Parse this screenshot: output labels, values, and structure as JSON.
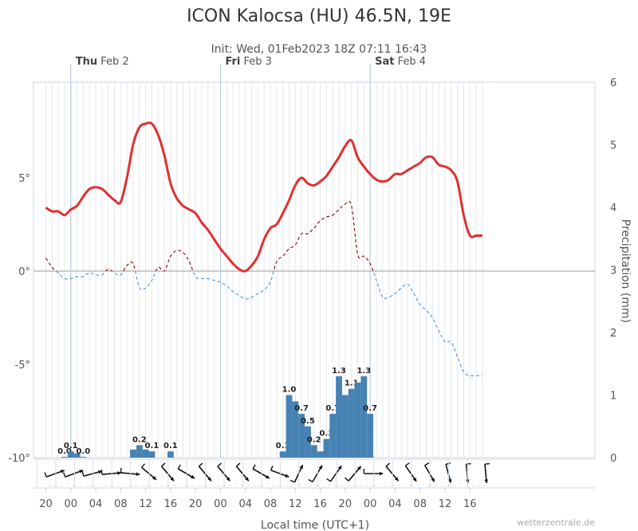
{
  "title": "ICON Kalocsa (HU) 46.5N, 19E",
  "subtitle": "Init: Wed, 01Feb2023 18Z 07:11 16:43",
  "x_axis_title": "Local time (UTC+1)",
  "y2_axis_title": "Precipitation (mm)",
  "credit": "wetterzentrale.de",
  "colors": {
    "temperature": "#e03030",
    "dewpoint_above": "#8b1a1a",
    "dewpoint_below": "#5b9bd5",
    "precipitation": "#4682b4",
    "grid": "#e4e8ee",
    "zero_line": "#999999"
  },
  "days": [
    {
      "name": "Thu",
      "date": "Feb 2",
      "hour": 24
    },
    {
      "name": "Fri",
      "date": "Feb 3",
      "hour": 48
    },
    {
      "name": "Sat",
      "date": "Feb 4",
      "hour": 72
    }
  ],
  "chart_data": {
    "type": "line",
    "x": [
      20,
      21,
      22,
      23,
      24,
      25,
      26,
      27,
      28,
      29,
      30,
      31,
      32,
      33,
      34,
      35,
      36,
      37,
      38,
      39,
      40,
      41,
      42,
      43,
      44,
      45,
      46,
      47,
      48,
      49,
      50,
      51,
      52,
      53,
      54,
      55,
      56,
      57,
      58,
      59,
      60,
      61,
      62,
      63,
      64,
      65,
      66,
      67,
      68,
      69,
      70,
      71,
      72,
      73,
      74,
      75,
      76,
      77,
      78,
      79,
      80,
      81,
      82,
      83,
      84,
      85,
      86,
      87,
      88,
      89,
      90
    ],
    "x_tick_labels": [
      "20",
      "00",
      "04",
      "08",
      "12",
      "16",
      "20",
      "00",
      "04",
      "08",
      "12",
      "16",
      "20",
      "00",
      "04",
      "08",
      "12",
      "16"
    ],
    "ylim_left": [
      -10,
      10
    ],
    "yticks_left": [
      "5°",
      "0°",
      "-5°",
      "-10°"
    ],
    "ylim_right": [
      0,
      6
    ],
    "yticks_right": [
      "0",
      "1",
      "2",
      "3",
      "4",
      "5",
      "6"
    ],
    "series": [
      {
        "name": "",
        "kind": "temperature",
        "values": [
          3.4,
          3.2,
          3.2,
          3.0,
          3.3,
          3.5,
          4.0,
          4.4,
          4.5,
          4.4,
          4.1,
          3.8,
          3.7,
          5.0,
          6.8,
          7.7,
          7.9,
          7.9,
          7.3,
          6.2,
          4.7,
          3.9,
          3.5,
          3.3,
          3.1,
          2.6,
          2.2,
          1.7,
          1.2,
          0.8,
          0.4,
          0.1,
          0.0,
          0.3,
          0.8,
          1.7,
          2.3,
          2.5,
          3.1,
          3.8,
          4.6,
          5.0,
          4.7,
          4.6,
          4.8,
          5.1,
          5.6,
          6.1,
          6.7,
          7.0,
          6.1,
          5.6,
          5.2,
          4.9,
          4.8,
          4.9,
          5.2,
          5.2,
          5.4,
          5.6,
          5.8,
          6.1,
          6.1,
          5.7,
          5.6,
          5.4,
          4.8,
          3.0,
          1.9,
          1.9,
          1.9
        ]
      },
      {
        "name": "",
        "kind": "dewpoint",
        "values": [
          0.7,
          0.2,
          -0.1,
          -0.4,
          -0.4,
          -0.3,
          -0.3,
          -0.1,
          -0.2,
          -0.2,
          0.1,
          -0.1,
          -0.2,
          0.3,
          0.4,
          -0.9,
          -0.9,
          -0.5,
          0.2,
          0.0,
          0.8,
          1.1,
          1.0,
          0.5,
          -0.3,
          -0.4,
          -0.4,
          -0.5,
          -0.6,
          -0.8,
          -1.1,
          -1.3,
          -1.5,
          -1.4,
          -1.2,
          -1.0,
          -0.6,
          0.5,
          0.8,
          1.2,
          1.4,
          2.0,
          2.0,
          2.3,
          2.7,
          2.9,
          3.0,
          3.3,
          3.6,
          3.5,
          0.9,
          0.8,
          0.4,
          -0.5,
          -1.4,
          -1.4,
          -1.2,
          -0.9,
          -0.7,
          -1.2,
          -1.8,
          -2.1,
          -2.5,
          -3.2,
          -3.8,
          -3.8,
          -4.6,
          -5.4,
          -5.6,
          -5.6,
          -5.6
        ]
      },
      {
        "name": "",
        "kind": "precipitation",
        "unit": "mm",
        "axis": "right",
        "bars": [
          {
            "x": 23,
            "value": 0.0,
            "label": "0.0"
          },
          {
            "x": 24,
            "value": 0.1,
            "label": "0.1"
          },
          {
            "x": 25,
            "value": 0.07,
            "label": ""
          },
          {
            "x": 26,
            "value": 0.0,
            "label": "0.0"
          },
          {
            "x": 34,
            "value": 0.13,
            "label": ""
          },
          {
            "x": 35,
            "value": 0.2,
            "label": "0.2"
          },
          {
            "x": 36,
            "value": 0.13,
            "label": ""
          },
          {
            "x": 37,
            "value": 0.1,
            "label": "0.1"
          },
          {
            "x": 40,
            "value": 0.1,
            "label": "0.1"
          },
          {
            "x": 58,
            "value": 0.1,
            "label": "0.1"
          },
          {
            "x": 59,
            "value": 1.0,
            "label": "1.0"
          },
          {
            "x": 60,
            "value": 0.9,
            "label": ""
          },
          {
            "x": 61,
            "value": 0.7,
            "label": "0.7"
          },
          {
            "x": 62,
            "value": 0.5,
            "label": "0.5"
          },
          {
            "x": 63,
            "value": 0.2,
            "label": "0.2"
          },
          {
            "x": 64,
            "value": 0.1,
            "label": ""
          },
          {
            "x": 65,
            "value": 0.3,
            "label": "0.3"
          },
          {
            "x": 66,
            "value": 0.7,
            "label": "0.7"
          },
          {
            "x": 67,
            "value": 1.3,
            "label": "1.3"
          },
          {
            "x": 68,
            "value": 1.0,
            "label": ""
          },
          {
            "x": 69,
            "value": 1.1,
            "label": "1.1"
          },
          {
            "x": 70,
            "value": 1.2,
            "label": ""
          },
          {
            "x": 71,
            "value": 1.3,
            "label": "1.3"
          },
          {
            "x": 72,
            "value": 0.7,
            "label": "0.7"
          }
        ]
      }
    ],
    "wind_direction_deg": [
      250,
      250,
      260,
      260,
      260,
      265,
      270,
      275,
      280,
      300,
      320,
      310,
      320,
      330,
      320,
      330,
      320,
      330,
      330,
      330,
      330,
      340,
      350,
      350,
      350,
      360,
      360,
      360
    ],
    "wind_barb_hours": [
      20,
      23,
      26,
      29,
      32,
      35,
      38,
      41,
      44,
      47,
      50,
      53,
      56,
      59,
      62,
      65,
      68,
      71,
      74,
      77,
      80,
      83,
      86,
      89
    ],
    "wind_dirs": [
      250,
      250,
      255,
      265,
      275,
      310,
      320,
      300,
      320,
      320,
      320,
      300,
      290,
      205,
      210,
      215,
      220,
      270,
      320,
      325,
      330,
      345,
      355,
      355
    ]
  }
}
